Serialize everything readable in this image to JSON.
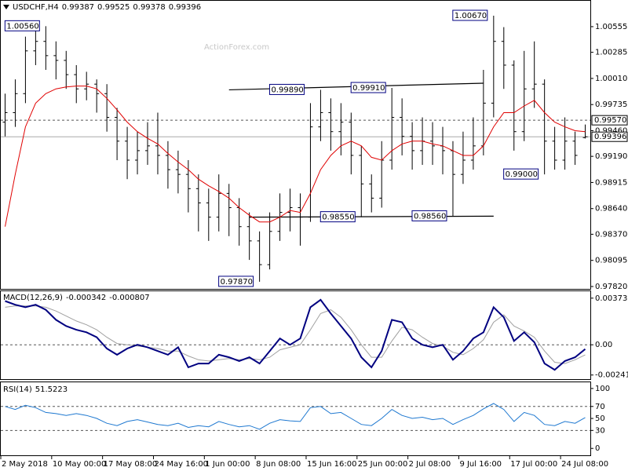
{
  "chart_data": [
    {
      "type": "ohlc",
      "title": "USDCHF,H4",
      "watermark": "ActionForex.com",
      "bar_color": "#000000",
      "open": [
        0.9955,
        0.9965,
        0.9985,
        1.003,
        1.004,
        1.0025,
        1.002,
        1.0005,
        0.999,
        0.9995,
        0.9985,
        0.996,
        0.9935,
        0.9915,
        0.9925,
        0.993,
        0.992,
        0.9905,
        0.99,
        0.9885,
        0.987,
        0.9855,
        0.988,
        0.9865,
        0.9845,
        0.983,
        0.9805,
        0.984,
        0.986,
        0.9865,
        0.9855,
        0.995,
        0.9965,
        0.9945,
        0.9955,
        0.992,
        0.989,
        0.9875,
        0.9915,
        0.996,
        0.994,
        0.9925,
        0.9935,
        0.993,
        0.9925,
        0.99,
        0.9915,
        0.993,
        0.9975,
        1.004,
        1.0015,
        0.9945,
        0.999,
        0.9995,
        0.9935,
        0.9915,
        0.9935,
        0.99387
      ],
      "high": [
        0.9985,
        1.0,
        1.0045,
        1.0052,
        1.0056,
        1.004,
        1.003,
        1.0015,
        1.0008,
        1.0,
        0.9995,
        0.997,
        0.995,
        0.9945,
        0.9955,
        0.9965,
        0.9935,
        0.9925,
        0.9915,
        0.99,
        0.9885,
        0.99,
        0.989,
        0.9875,
        0.986,
        0.984,
        0.986,
        0.988,
        0.9885,
        0.988,
        0.9975,
        0.9989,
        0.998,
        0.9975,
        0.9965,
        0.993,
        0.99,
        0.9935,
        0.9991,
        0.998,
        0.9955,
        0.996,
        0.9955,
        0.995,
        0.9935,
        0.9945,
        0.996,
        1.001,
        1.0067,
        1.0055,
        1.002,
        1.003,
        1.004,
        1.0,
        0.995,
        0.996,
        0.9945,
        0.99525
      ],
      "low": [
        0.994,
        0.995,
        0.9975,
        1.0015,
        1.001,
        1.0,
        0.999,
        0.9975,
        0.9978,
        0.9965,
        0.9945,
        0.9915,
        0.9895,
        0.99,
        0.991,
        0.99,
        0.9885,
        0.988,
        0.986,
        0.984,
        0.983,
        0.984,
        0.9835,
        0.9825,
        0.981,
        0.9787,
        0.98,
        0.983,
        0.984,
        0.9825,
        0.985,
        0.9935,
        0.9925,
        0.992,
        0.99,
        0.9855,
        0.986,
        0.9865,
        0.9905,
        0.992,
        0.9905,
        0.991,
        0.991,
        0.99,
        0.9856,
        0.989,
        0.9905,
        0.992,
        0.996,
        0.999,
        0.9925,
        0.9935,
        0.997,
        0.99,
        0.9905,
        0.9905,
        0.991,
        0.99378
      ],
      "close": [
        0.9965,
        0.9985,
        1.003,
        1.004,
        1.0025,
        1.002,
        1.0005,
        0.999,
        0.9995,
        0.9985,
        0.996,
        0.9935,
        0.9915,
        0.9925,
        0.993,
        0.992,
        0.9905,
        0.99,
        0.9885,
        0.987,
        0.9855,
        0.988,
        0.9865,
        0.9845,
        0.983,
        0.9805,
        0.984,
        0.986,
        0.9865,
        0.9855,
        0.995,
        0.9965,
        0.9945,
        0.9955,
        0.992,
        0.989,
        0.9875,
        0.9915,
        0.996,
        0.994,
        0.9925,
        0.9935,
        0.993,
        0.9925,
        0.99,
        0.9915,
        0.993,
        0.9975,
        1.004,
        1.0015,
        0.9945,
        0.999,
        0.9995,
        0.9935,
        0.9915,
        0.9935,
        0.992,
        0.99396
      ],
      "ma": {
        "color": "#e00000",
        "values": [
          0.9845,
          0.99,
          0.995,
          0.9975,
          0.9985,
          0.999,
          0.9992,
          0.9993,
          0.9993,
          0.999,
          0.998,
          0.9968,
          0.9955,
          0.9945,
          0.9938,
          0.9932,
          0.9922,
          0.9913,
          0.9905,
          0.9895,
          0.9888,
          0.9882,
          0.9875,
          0.9865,
          0.9857,
          0.985,
          0.985,
          0.9855,
          0.9862,
          0.986,
          0.988,
          0.9905,
          0.992,
          0.993,
          0.9935,
          0.993,
          0.9918,
          0.9915,
          0.9925,
          0.9932,
          0.9935,
          0.9935,
          0.9932,
          0.993,
          0.9925,
          0.992,
          0.992,
          0.993,
          0.995,
          0.9965,
          0.9965,
          0.9972,
          0.9978,
          0.9965,
          0.9955,
          0.995,
          0.9946,
          0.9945
        ]
      },
      "ylim": [
        0.97795,
        1.00819
      ],
      "yticks": [
        1.00555,
        1.00285,
        {
          "value": 1.0001,
          "label": "1.00010"
        },
        0.99735,
        {
          "value": 0.9946,
          "label": "0.99460"
        },
        {
          "value": 0.9919,
          "label": "0.99190"
        },
        0.98915,
        {
          "value": 0.9864,
          "label": "0.98640"
        },
        {
          "value": 0.9837,
          "label": "0.98370"
        },
        0.98095,
        {
          "value": 0.9782,
          "label": "0.97820"
        }
      ],
      "level": {
        "value": 0.9957,
        "label": "0.99570"
      },
      "annotations": [
        {
          "value": 1.0056,
          "label": "1.00560",
          "at": 4
        },
        {
          "value": 1.0067,
          "label": "1.00670",
          "at": 48
        },
        {
          "value": 0.9989,
          "label": "0.99890",
          "at": 30
        },
        {
          "value": 0.9991,
          "label": "0.99910",
          "at": 38
        },
        {
          "value": 0.9855,
          "label": "0.98550",
          "at": 35
        },
        {
          "value": 0.9856,
          "label": "0.98560",
          "at": 44
        },
        {
          "value": 0.99,
          "label": "0.99000",
          "at": 53
        },
        {
          "value": 0.9787,
          "label": "0.97870",
          "at": 25
        }
      ],
      "trendlines": [
        {
          "from": [
            22,
            0.9989
          ],
          "to": [
            47,
            0.9996
          ]
        },
        {
          "from": [
            24,
            0.9855
          ],
          "to": [
            48,
            0.9856
          ]
        }
      ]
    },
    {
      "type": "macd",
      "title": "MACD(12,26,9)",
      "main": {
        "color": "#000080",
        "values": [
          0.0035,
          0.0032,
          0.003,
          0.0032,
          0.0028,
          0.002,
          0.0015,
          0.0012,
          0.001,
          0.0006,
          -0.0003,
          -0.0008,
          -0.0003,
          0.0,
          -0.0002,
          -0.0005,
          -0.0008,
          -0.0002,
          -0.0018,
          -0.0015,
          -0.0015,
          -0.0008,
          -0.001,
          -0.0013,
          -0.001,
          -0.0015,
          -0.0005,
          0.0005,
          0.0,
          0.0005,
          0.003,
          0.0036,
          0.0025,
          0.0015,
          0.0005,
          -0.001,
          -0.0018,
          -0.0005,
          0.002,
          0.0018,
          0.0005,
          0.0,
          -0.0002,
          0.0,
          -0.0012,
          -0.0005,
          0.0005,
          0.001,
          0.003,
          0.0022,
          0.0003,
          0.001,
          0.0002,
          -0.0015,
          -0.002,
          -0.0013,
          -0.001,
          -0.000342
        ]
      },
      "signal": {
        "color": "#a0a0a0",
        "values": [
          0.003,
          0.0031,
          0.0031,
          0.0031,
          0.003,
          0.0027,
          0.0023,
          0.0019,
          0.0016,
          0.0012,
          0.0006,
          0.0001,
          0.0,
          -0.0001,
          -0.0002,
          -0.0003,
          -0.0005,
          -0.0005,
          -0.0009,
          -0.0012,
          -0.0013,
          -0.0012,
          -0.0011,
          -0.0012,
          -0.0011,
          -0.0012,
          -0.001,
          -0.0004,
          -0.0002,
          0.0,
          0.0012,
          0.0025,
          0.0028,
          0.0022,
          0.0012,
          0.0,
          -0.001,
          -0.001,
          0.0003,
          0.0014,
          0.0012,
          0.0006,
          0.0001,
          -0.0001,
          -0.0006,
          -0.0008,
          -0.0003,
          0.0004,
          0.0018,
          0.0024,
          0.0015,
          0.0011,
          0.0006,
          -0.0005,
          -0.0014,
          -0.0015,
          -0.0012,
          -0.000807
        ]
      },
      "ylim": [
        -0.00275,
        0.00422
      ],
      "yticks": [
        0.00373,
        {
          "value": 0,
          "label": "0.00"
        },
        -0.002419
      ],
      "dashed_ticks": [
        1
      ]
    },
    {
      "type": "rsi",
      "title": "RSI(14)",
      "color": "#1e78d0",
      "values": [
        70,
        65,
        72,
        68,
        60,
        58,
        55,
        58,
        55,
        50,
        42,
        38,
        45,
        48,
        44,
        40,
        38,
        42,
        35,
        38,
        36,
        45,
        40,
        36,
        38,
        32,
        42,
        48,
        46,
        45,
        68,
        70,
        58,
        60,
        50,
        40,
        38,
        50,
        65,
        55,
        50,
        52,
        48,
        50,
        40,
        48,
        55,
        66,
        75,
        65,
        45,
        60,
        55,
        40,
        38,
        45,
        42,
        51.5223
      ],
      "ylim": [
        -11.5,
        107.7
      ],
      "yticks": [
        100,
        70,
        50,
        30,
        0
      ],
      "dashed_ticks": [
        1,
        3
      ],
      "categories": [
        "2 May 2018",
        null,
        null,
        null,
        null,
        "10 May 00:00",
        null,
        null,
        null,
        null,
        "17 May 08:00",
        null,
        null,
        null,
        null,
        "24 May 16:00",
        null,
        null,
        null,
        null,
        "1 Jun 00:00",
        null,
        null,
        null,
        null,
        "8 Jun 08:00",
        null,
        null,
        null,
        null,
        "15 Jun 16:00",
        null,
        null,
        null,
        null,
        "25 Jun 00:00",
        null,
        null,
        null,
        null,
        "2 Jul 08:00",
        null,
        null,
        null,
        null,
        "9 Jul 16:00",
        null,
        null,
        null,
        null,
        "17 Jul 00:00",
        null,
        null,
        null,
        null,
        "24 Jul 08:00",
        null,
        null
      ]
    }
  ]
}
